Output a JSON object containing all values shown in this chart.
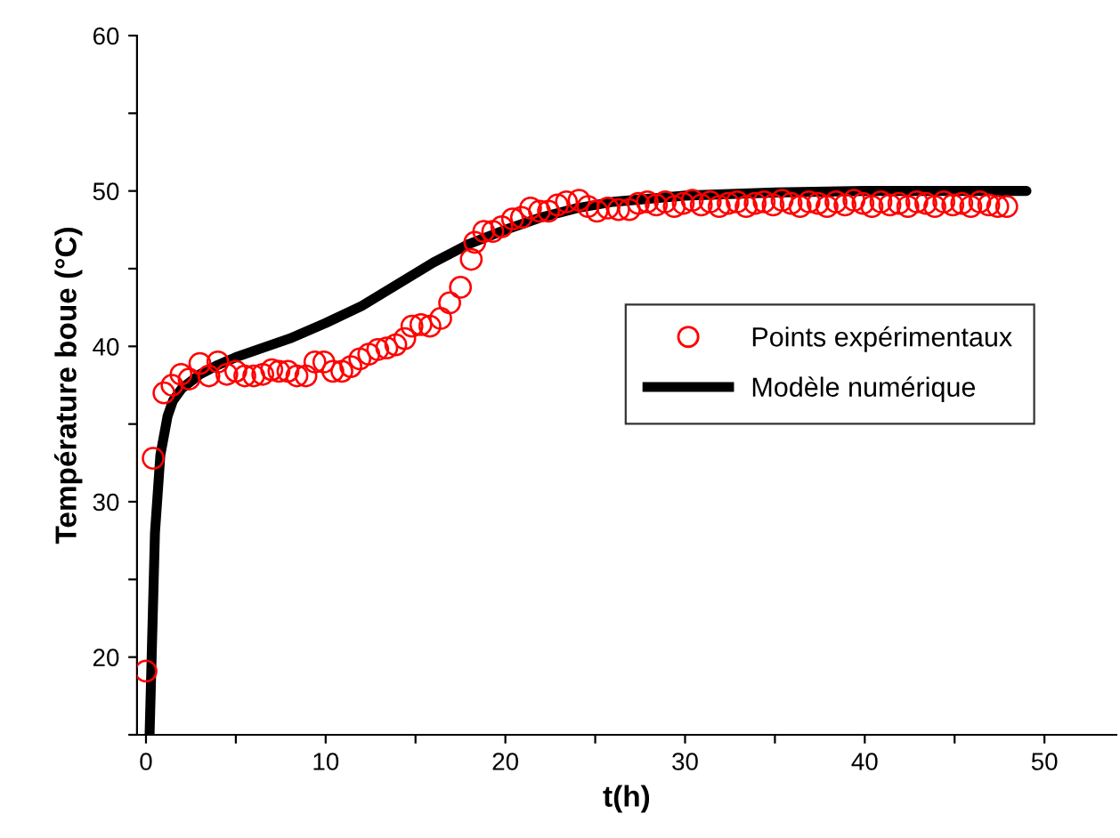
{
  "chart_data": {
    "type": "scatter",
    "xlabel": "t(h)",
    "ylabel": "Température boue (°C)",
    "xlim": [
      -0.5,
      54
    ],
    "ylim": [
      15,
      60
    ],
    "xticks": [
      0,
      {
        "value": 5,
        "label": null
      },
      10,
      {
        "value": 15,
        "label": null
      },
      20,
      {
        "value": 25,
        "label": null
      },
      30,
      {
        "value": 35,
        "label": null
      },
      40,
      {
        "value": 45,
        "label": null
      },
      50
    ],
    "yticks": [
      {
        "value": 15,
        "label": null
      },
      20,
      {
        "value": 25,
        "label": null
      },
      30,
      {
        "value": 35,
        "label": null
      },
      40,
      {
        "value": 45,
        "label": null
      },
      50,
      {
        "value": 55,
        "label": null
      },
      60
    ],
    "grid": false,
    "legend": "right",
    "series": [
      {
        "name": "Points expérimentaux",
        "marker": "circle",
        "color": "#ff0000",
        "x": [
          0,
          0.4,
          1.0,
          1.45,
          1.95,
          2.4,
          3.0,
          3.5,
          4.0,
          4.5,
          5.0,
          5.5,
          6.0,
          6.5,
          7.0,
          7.4,
          7.9,
          8.4,
          8.9,
          9.4,
          9.9,
          10.4,
          10.9,
          11.4,
          11.9,
          12.4,
          12.9,
          13.4,
          13.9,
          14.4,
          14.8,
          15.3,
          15.8,
          16.4,
          16.9,
          17.5,
          18.1,
          18.3,
          18.8,
          19.3,
          19.8,
          20.4,
          20.9,
          21.4,
          21.9,
          22.4,
          22.9,
          23.4,
          24.1,
          24.6,
          25.1,
          25.7,
          26.3,
          26.9,
          27.4,
          27.9,
          28.4,
          28.9,
          29.4,
          29.9,
          30.4,
          30.9,
          31.4,
          31.9,
          32.4,
          32.9,
          33.4,
          33.9,
          34.4,
          34.9,
          35.4,
          35.9,
          36.4,
          36.9,
          37.4,
          37.9,
          38.4,
          38.9,
          39.4,
          39.9,
          40.4,
          40.9,
          41.4,
          41.9,
          42.4,
          42.9,
          43.4,
          43.9,
          44.4,
          44.9,
          45.4,
          45.9,
          46.4,
          46.9,
          47.4,
          47.9
        ],
        "values": [
          19.1,
          32.8,
          37.0,
          37.5,
          38.2,
          37.9,
          38.9,
          38.1,
          39.0,
          38.2,
          38.4,
          38.1,
          38.1,
          38.2,
          38.5,
          38.4,
          38.4,
          38.1,
          38.1,
          39.0,
          39.0,
          38.4,
          38.4,
          38.7,
          39.2,
          39.5,
          39.8,
          39.9,
          40.1,
          40.5,
          41.3,
          41.4,
          41.3,
          41.8,
          42.8,
          43.8,
          45.6,
          46.7,
          47.4,
          47.4,
          47.7,
          48.2,
          48.3,
          48.9,
          48.7,
          48.7,
          49.1,
          49.3,
          49.4,
          49.0,
          48.7,
          48.9,
          48.8,
          48.8,
          49.2,
          49.3,
          49.1,
          49.3,
          49.0,
          49.2,
          49.4,
          49.1,
          49.3,
          49.0,
          49.2,
          49.3,
          49.0,
          49.2,
          49.3,
          49.1,
          49.4,
          49.2,
          49.0,
          49.3,
          49.2,
          49.0,
          49.3,
          49.1,
          49.4,
          49.2,
          49.0,
          49.3,
          49.1,
          49.2,
          49.0,
          49.3,
          49.2,
          49.0,
          49.3,
          49.1,
          49.2,
          49.0,
          49.3,
          49.1,
          49.0,
          49.0
        ]
      },
      {
        "name": "Modèle numérique",
        "type": "line",
        "marker": "none",
        "line_style": "solid",
        "color": "#000000",
        "x": [
          0.2,
          0.5,
          0.8,
          1.2,
          1.5,
          2,
          3,
          4,
          5,
          6,
          8,
          10,
          12,
          14,
          16,
          18,
          20,
          22,
          24,
          26,
          28,
          30,
          35,
          40,
          45,
          49
        ],
        "values": [
          15,
          28,
          33,
          35.5,
          36.5,
          37.3,
          38.2,
          38.8,
          39.3,
          39.7,
          40.5,
          41.5,
          42.6,
          44.0,
          45.4,
          46.6,
          47.5,
          48.3,
          48.9,
          49.3,
          49.5,
          49.7,
          49.9,
          50.0,
          50.0,
          50.0
        ]
      }
    ]
  }
}
